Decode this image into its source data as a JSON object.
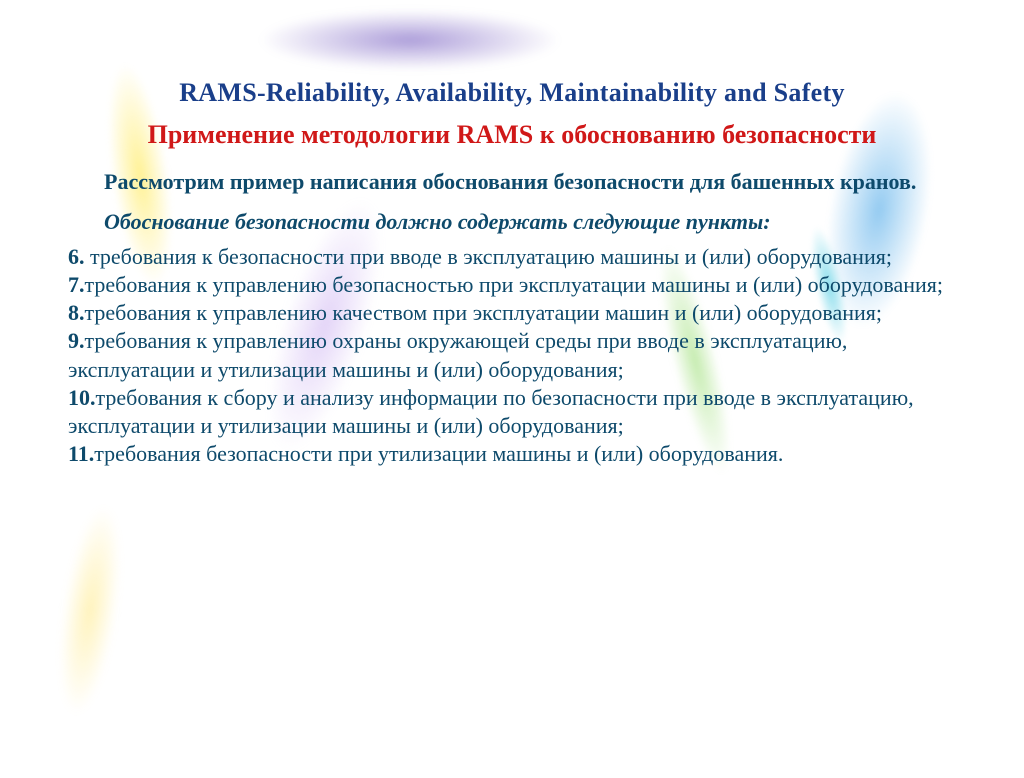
{
  "colors": {
    "title_en": "#1a3f8a",
    "title_ru": "#d01818",
    "body_text": "#0e4a6b",
    "background": "#ffffff"
  },
  "typography": {
    "family": "Times New Roman",
    "title_en_size_pt": 20,
    "title_ru_size_pt": 20,
    "body_size_pt": 17,
    "title_en_weight": "bold",
    "title_ru_weight": "bold",
    "intro_weight": "bold",
    "lead_style": "bold italic"
  },
  "title_en": "RAMS-Reliability, Availability, Maintainability and Safety",
  "title_ru": "Применение методологии RAMS к обоснованию безопасности",
  "intro": "Рассмотрим пример написания обоснования безопасности для башенных кранов.",
  "lead": "Обоснование безопасности должно содержать следующие пункты:",
  "items": [
    {
      "num": "6.",
      "text": " требования к безопасности при вводе в эксплуатацию машины и (или) оборудования;"
    },
    {
      "num": "7.",
      "text": "требования к управлению безопасностью при эксплуатации машины и (или) оборудования;"
    },
    {
      "num": "8.",
      "text": "требования к управлению качеством при эксплуатации машин и (или) оборудования;"
    },
    {
      "num": "9.",
      "text": "требования к управлению охраны окружающей среды при вводе в эксплуатацию, эксплуатации и утилизации машины и (или) оборудования;"
    },
    {
      "num": "10.",
      "text": "требования к сбору и анализу информации по безопасности при вводе в эксплуатацию, эксплуатации и утилизации машины и (или) оборудования;"
    },
    {
      "num": "11.",
      "text": "требования безопасности при утилизации машины и (или) оборудования."
    }
  ],
  "decorations": [
    {
      "name": "ribbon-top-purple",
      "approx_color": "#5a3cb4"
    },
    {
      "name": "ribbon-yellow",
      "approx_color": "#ffe63c"
    },
    {
      "name": "ribbon-blue",
      "approx_color": "#3ca0e6"
    },
    {
      "name": "ribbon-cyan-small",
      "approx_color": "#64d2e6"
    },
    {
      "name": "ribbon-lav",
      "approx_color": "#c8aaf0"
    },
    {
      "name": "ribbon-green",
      "approx_color": "#96dc6e"
    },
    {
      "name": "ribbon-yellow2",
      "approx_color": "#ffdc3c"
    }
  ]
}
